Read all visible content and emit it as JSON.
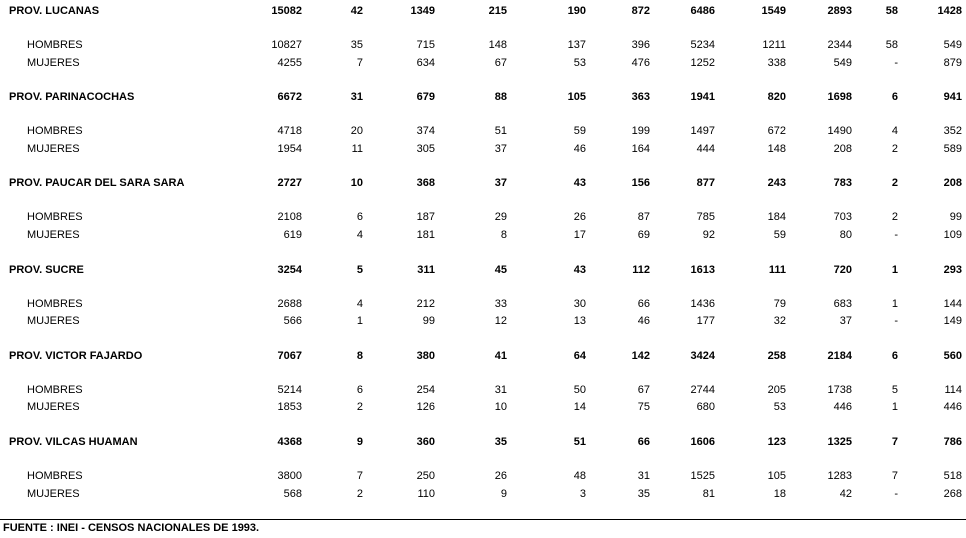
{
  "provinces": [
    {
      "name": "PROV. LUCANAS",
      "total": [
        "15082",
        "42",
        "1349",
        "215",
        "190",
        "872",
        "6486",
        "1549",
        "2893",
        "58",
        "1428"
      ],
      "rows": [
        {
          "label": "HOMBRES",
          "values": [
            "10827",
            "35",
            "715",
            "148",
            "137",
            "396",
            "5234",
            "1211",
            "2344",
            "58",
            "549"
          ]
        },
        {
          "label": "MUJERES",
          "values": [
            "4255",
            "7",
            "634",
            "67",
            "53",
            "476",
            "1252",
            "338",
            "549",
            "-",
            "879"
          ]
        }
      ]
    },
    {
      "name": "PROV. PARINACOCHAS",
      "total": [
        "6672",
        "31",
        "679",
        "88",
        "105",
        "363",
        "1941",
        "820",
        "1698",
        "6",
        "941"
      ],
      "rows": [
        {
          "label": "HOMBRES",
          "values": [
            "4718",
            "20",
            "374",
            "51",
            "59",
            "199",
            "1497",
            "672",
            "1490",
            "4",
            "352"
          ]
        },
        {
          "label": "MUJERES",
          "values": [
            "1954",
            "11",
            "305",
            "37",
            "46",
            "164",
            "444",
            "148",
            "208",
            "2",
            "589"
          ]
        }
      ]
    },
    {
      "name": "PROV. PAUCAR DEL SARA SARA",
      "total": [
        "2727",
        "10",
        "368",
        "37",
        "43",
        "156",
        "877",
        "243",
        "783",
        "2",
        "208"
      ],
      "rows": [
        {
          "label": "HOMBRES",
          "values": [
            "2108",
            "6",
            "187",
            "29",
            "26",
            "87",
            "785",
            "184",
            "703",
            "2",
            "99"
          ]
        },
        {
          "label": "MUJERES",
          "values": [
            "619",
            "4",
            "181",
            "8",
            "17",
            "69",
            "92",
            "59",
            "80",
            "-",
            "109"
          ]
        }
      ]
    },
    {
      "name": "PROV. SUCRE",
      "total": [
        "3254",
        "5",
        "311",
        "45",
        "43",
        "112",
        "1613",
        "111",
        "720",
        "1",
        "293"
      ],
      "rows": [
        {
          "label": "HOMBRES",
          "values": [
            "2688",
            "4",
            "212",
            "33",
            "30",
            "66",
            "1436",
            "79",
            "683",
            "1",
            "144"
          ]
        },
        {
          "label": "MUJERES",
          "values": [
            "566",
            "1",
            "99",
            "12",
            "13",
            "46",
            "177",
            "32",
            "37",
            "-",
            "149"
          ]
        }
      ]
    },
    {
      "name": "PROV. VICTOR FAJARDO",
      "total": [
        "7067",
        "8",
        "380",
        "41",
        "64",
        "142",
        "3424",
        "258",
        "2184",
        "6",
        "560"
      ],
      "rows": [
        {
          "label": "HOMBRES",
          "values": [
            "5214",
            "6",
            "254",
            "31",
            "50",
            "67",
            "2744",
            "205",
            "1738",
            "5",
            "114"
          ]
        },
        {
          "label": "MUJERES",
          "values": [
            "1853",
            "2",
            "126",
            "10",
            "14",
            "75",
            "680",
            "53",
            "446",
            "1",
            "446"
          ]
        }
      ]
    },
    {
      "name": "PROV. VILCAS HUAMAN",
      "total": [
        "4368",
        "9",
        "360",
        "35",
        "51",
        "66",
        "1606",
        "123",
        "1325",
        "7",
        "786"
      ],
      "rows": [
        {
          "label": "HOMBRES",
          "values": [
            "3800",
            "7",
            "250",
            "26",
            "48",
            "31",
            "1525",
            "105",
            "1283",
            "7",
            "518"
          ]
        },
        {
          "label": "MUJERES",
          "values": [
            "568",
            "2",
            "110",
            "9",
            "3",
            "35",
            "81",
            "18",
            "42",
            "-",
            "268"
          ]
        }
      ]
    }
  ],
  "footer": {
    "source": "FUENTE : INEI - CENSOS NACIONALES DE 1993."
  }
}
